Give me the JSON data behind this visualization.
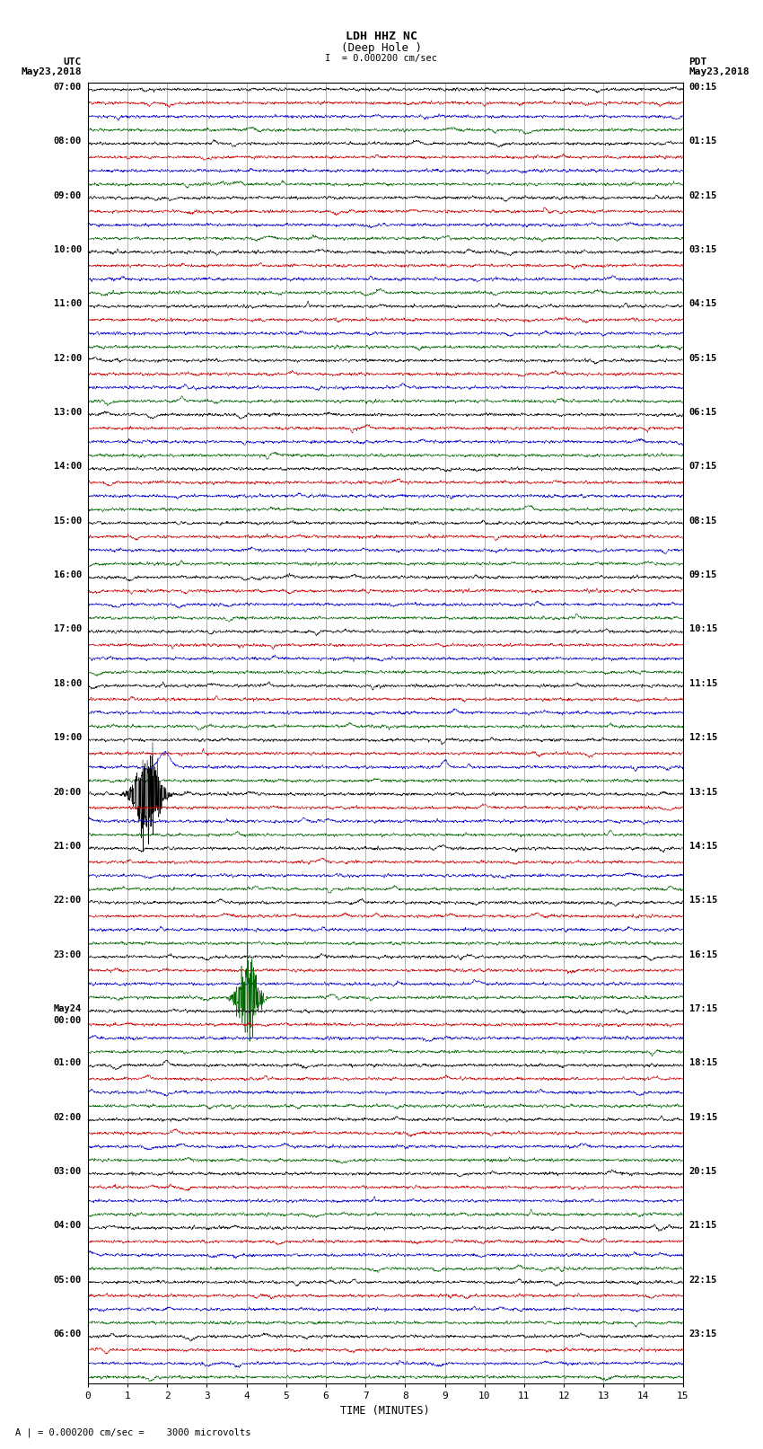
{
  "title_line1": "LDH HHZ NC",
  "title_line2": "(Deep Hole )",
  "scale_label": "I  = 0.000200 cm/sec",
  "bottom_note": "A | = 0.000200 cm/sec =    3000 microvolts",
  "utc_header": "UTC\nMay23,2018",
  "pdt_header": "PDT\nMay23,2018",
  "xlabel": "TIME (MINUTES)",
  "fig_width": 8.5,
  "fig_height": 16.13,
  "dpi": 100,
  "bg_color": "#ffffff",
  "trace_colors": [
    "#000000",
    "#cc0000",
    "#0000cc",
    "#006600"
  ],
  "utc_hour_labels": [
    "07:00",
    "08:00",
    "09:00",
    "10:00",
    "11:00",
    "12:00",
    "13:00",
    "14:00",
    "15:00",
    "16:00",
    "17:00",
    "18:00",
    "19:00",
    "20:00",
    "21:00",
    "22:00",
    "23:00",
    "May24\n00:00",
    "01:00",
    "02:00",
    "03:00",
    "04:00",
    "05:00",
    "06:00"
  ],
  "pdt_hour_labels": [
    "00:15",
    "01:15",
    "02:15",
    "03:15",
    "04:15",
    "05:15",
    "06:15",
    "07:15",
    "08:15",
    "09:15",
    "10:15",
    "11:15",
    "12:15",
    "13:15",
    "14:15",
    "15:15",
    "16:15",
    "17:15",
    "18:15",
    "19:15",
    "20:15",
    "21:15",
    "22:15",
    "23:15"
  ],
  "num_groups": 24,
  "traces_per_group": 4,
  "minutes": 15,
  "pts": 2250,
  "grid_color": "#888888",
  "grid_linewidth": 0.5,
  "trace_linewidth": 0.4,
  "noise_amp": 0.32,
  "event_black_group": 13,
  "event_black_trace": 0,
  "event_blue_group": 12,
  "event_blue_trace": 2,
  "event_green_group": 16,
  "event_green_trace": 3,
  "label_fontsize": 7.5,
  "header_fontsize": 8.0,
  "title_fontsize": 9.5
}
